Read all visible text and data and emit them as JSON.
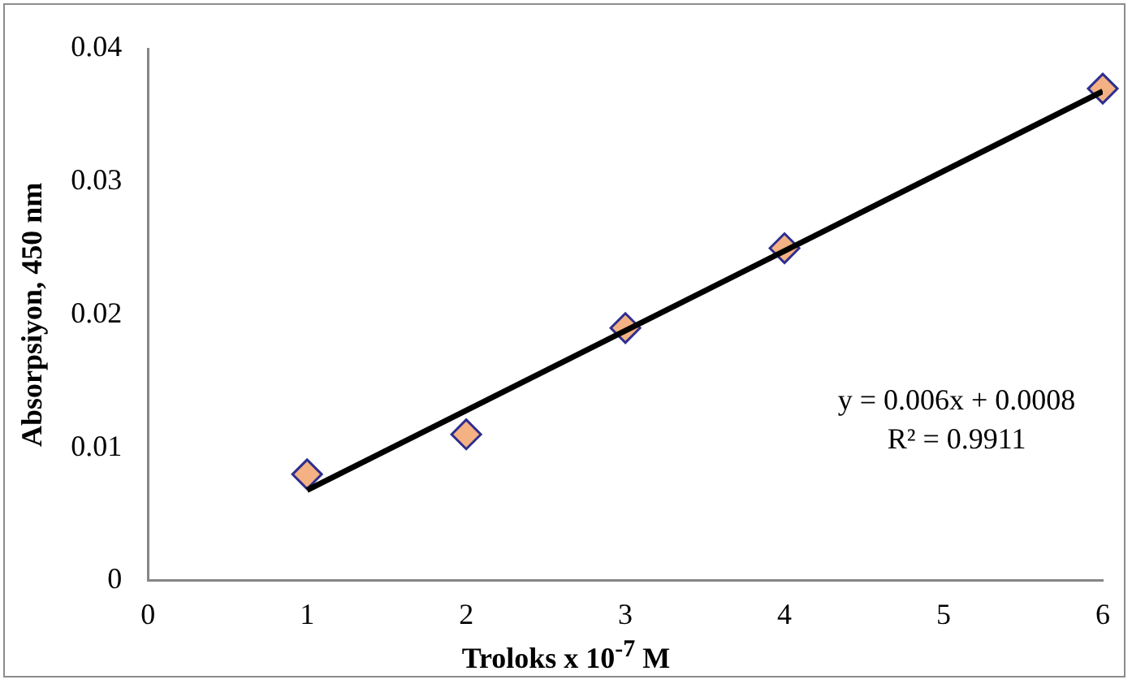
{
  "chart_data": {
    "type": "scatter",
    "xlabel": "Troloks x 10$^{-7}$ M",
    "ylabel": "Absorpsiyon, 450 nm",
    "x": [
      1,
      2,
      3,
      4,
      6
    ],
    "series": [
      {
        "type": "scatter",
        "color": "#f4b183",
        "marker": "diamond",
        "values": [
          0.008,
          0.011,
          0.019,
          0.025,
          0.037
        ]
      },
      {
        "type": "line",
        "color": "#000000",
        "marker": "none",
        "x": [
          1,
          6
        ],
        "values": [
          0.0068,
          0.0368
        ]
      }
    ],
    "xlim": [
      0,
      6
    ],
    "xticks": [
      0,
      1,
      2,
      3,
      4,
      5,
      6
    ],
    "ylim": [
      0,
      0.04
    ],
    "yticks": [
      0,
      0.01,
      0.02,
      0.03,
      0.04
    ],
    "grid": false,
    "legend": false,
    "annotations": [
      "y = 0.006x + 0.0008",
      "R² = 0.9911"
    ]
  }
}
